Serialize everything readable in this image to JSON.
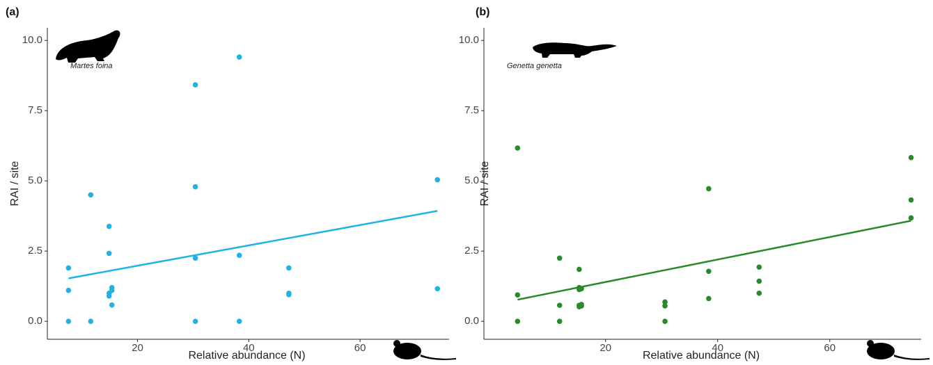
{
  "chart_data": [
    {
      "type": "scatter",
      "panel_label": "(a)",
      "annotation": "Martes foina",
      "xlabel": "Relative abundance (N)",
      "ylabel": "RAI / site",
      "xlim": [
        3.8,
        76
      ],
      "xticks": [
        20,
        40,
        60
      ],
      "ylim": [
        -0.64,
        10.45
      ],
      "yticks": [
        {
          "value": 0,
          "label": "0.0"
        },
        2.5,
        {
          "value": 5,
          "label": "5.0"
        },
        7.5,
        {
          "value": 10,
          "label": "10.0"
        }
      ],
      "series": [
        {
          "color": "#1eb3e6",
          "x": [
            7.6,
            7.6,
            7.6,
            11.6,
            11.6,
            14.9,
            14.9,
            14.9,
            14.9,
            15.4,
            15.4,
            15.4,
            30.4,
            30.4,
            30.4,
            30.4,
            38.3,
            38.3,
            38.3,
            47.2,
            47.2,
            47.2,
            73.9,
            73.9
          ],
          "values": [
            1.9,
            1.1,
            0,
            4.5,
            0,
            3.38,
            2.42,
            1.0,
            0.9,
            1.2,
            1.1,
            0.58,
            8.42,
            4.79,
            2.25,
            0,
            9.41,
            2.35,
            0,
            1.9,
            1.0,
            0.95,
            5.04,
            1.16
          ]
        }
      ],
      "trend": {
        "color": "#1eb3e6",
        "x": [
          7.6,
          73.9
        ],
        "values": [
          1.53,
          3.93
        ]
      }
    },
    {
      "type": "scatter",
      "panel_label": "(b)",
      "annotation": "Genetta genetta",
      "xlabel": "Relative abundance (N)",
      "ylabel": "RAI / site",
      "xlim": [
        -1.7,
        76.3
      ],
      "xticks": [
        20,
        40,
        60
      ],
      "ylim": [
        -0.64,
        10.45
      ],
      "yticks": [
        {
          "value": 0,
          "label": "0.0"
        },
        2.5,
        {
          "value": 5,
          "label": "5.0"
        },
        7.5,
        {
          "value": 10,
          "label": "10.0"
        }
      ],
      "series": [
        {
          "color": "#2a8a2a",
          "x": [
            4.3,
            4.3,
            4.3,
            11.8,
            11.8,
            11.8,
            15.3,
            15.3,
            15.3,
            15.3,
            15.3,
            15.7,
            15.7,
            15.7,
            30.6,
            30.6,
            30.6,
            38.4,
            38.4,
            38.4,
            47.4,
            47.4,
            47.4,
            74.5,
            74.5,
            74.5
          ],
          "values": [
            6.17,
            0.94,
            0,
            2.25,
            0.57,
            0,
            1.85,
            1.2,
            1.13,
            0.57,
            0.52,
            1.16,
            0.6,
            0.55,
            0.69,
            0.55,
            0,
            4.72,
            1.78,
            0.81,
            1.93,
            1.43,
            1.0,
            5.83,
            4.32,
            3.68
          ]
        }
      ],
      "trend": {
        "color": "#2a8a2a",
        "x": [
          4.3,
          74.5
        ],
        "values": [
          0.77,
          3.58
        ]
      }
    }
  ]
}
